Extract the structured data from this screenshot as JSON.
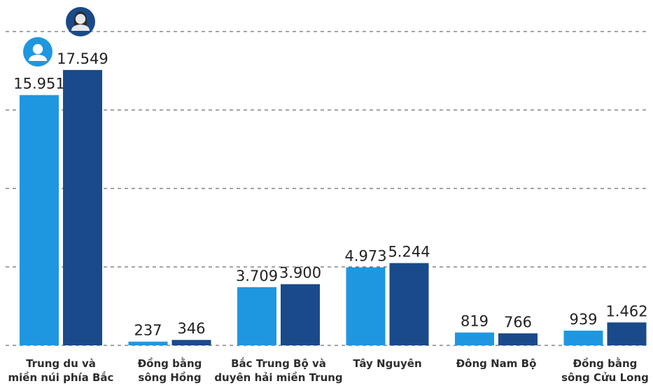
{
  "chart_data": {
    "type": "bar",
    "categories": [
      [
        "Trung du và",
        "miền núi phía Bắc"
      ],
      [
        "Đồng bằng",
        "sông Hồng"
      ],
      [
        "Bắc Trung Bộ và",
        "duyên hải miền Trung"
      ],
      [
        "Tây Nguyên"
      ],
      [
        "Đông Nam Bộ"
      ],
      [
        "Đồng bằng",
        "sông Cửu Long"
      ]
    ],
    "series": [
      {
        "icon": "male-person-icon",
        "color": "#1f97e0",
        "values": [
          15951,
          237,
          3709,
          4973,
          819,
          939
        ],
        "labels": [
          "15.951",
          "237",
          "3.709",
          "4.973",
          "819",
          "939"
        ]
      },
      {
        "icon": "female-person-icon",
        "color": "#1a4a8a",
        "values": [
          17549,
          346,
          3900,
          5244,
          766,
          1462
        ],
        "labels": [
          "17.549",
          "346",
          "3.900",
          "5.244",
          "766",
          "1.462"
        ]
      }
    ],
    "ylim": [
      0,
      20000
    ],
    "grid": true
  }
}
